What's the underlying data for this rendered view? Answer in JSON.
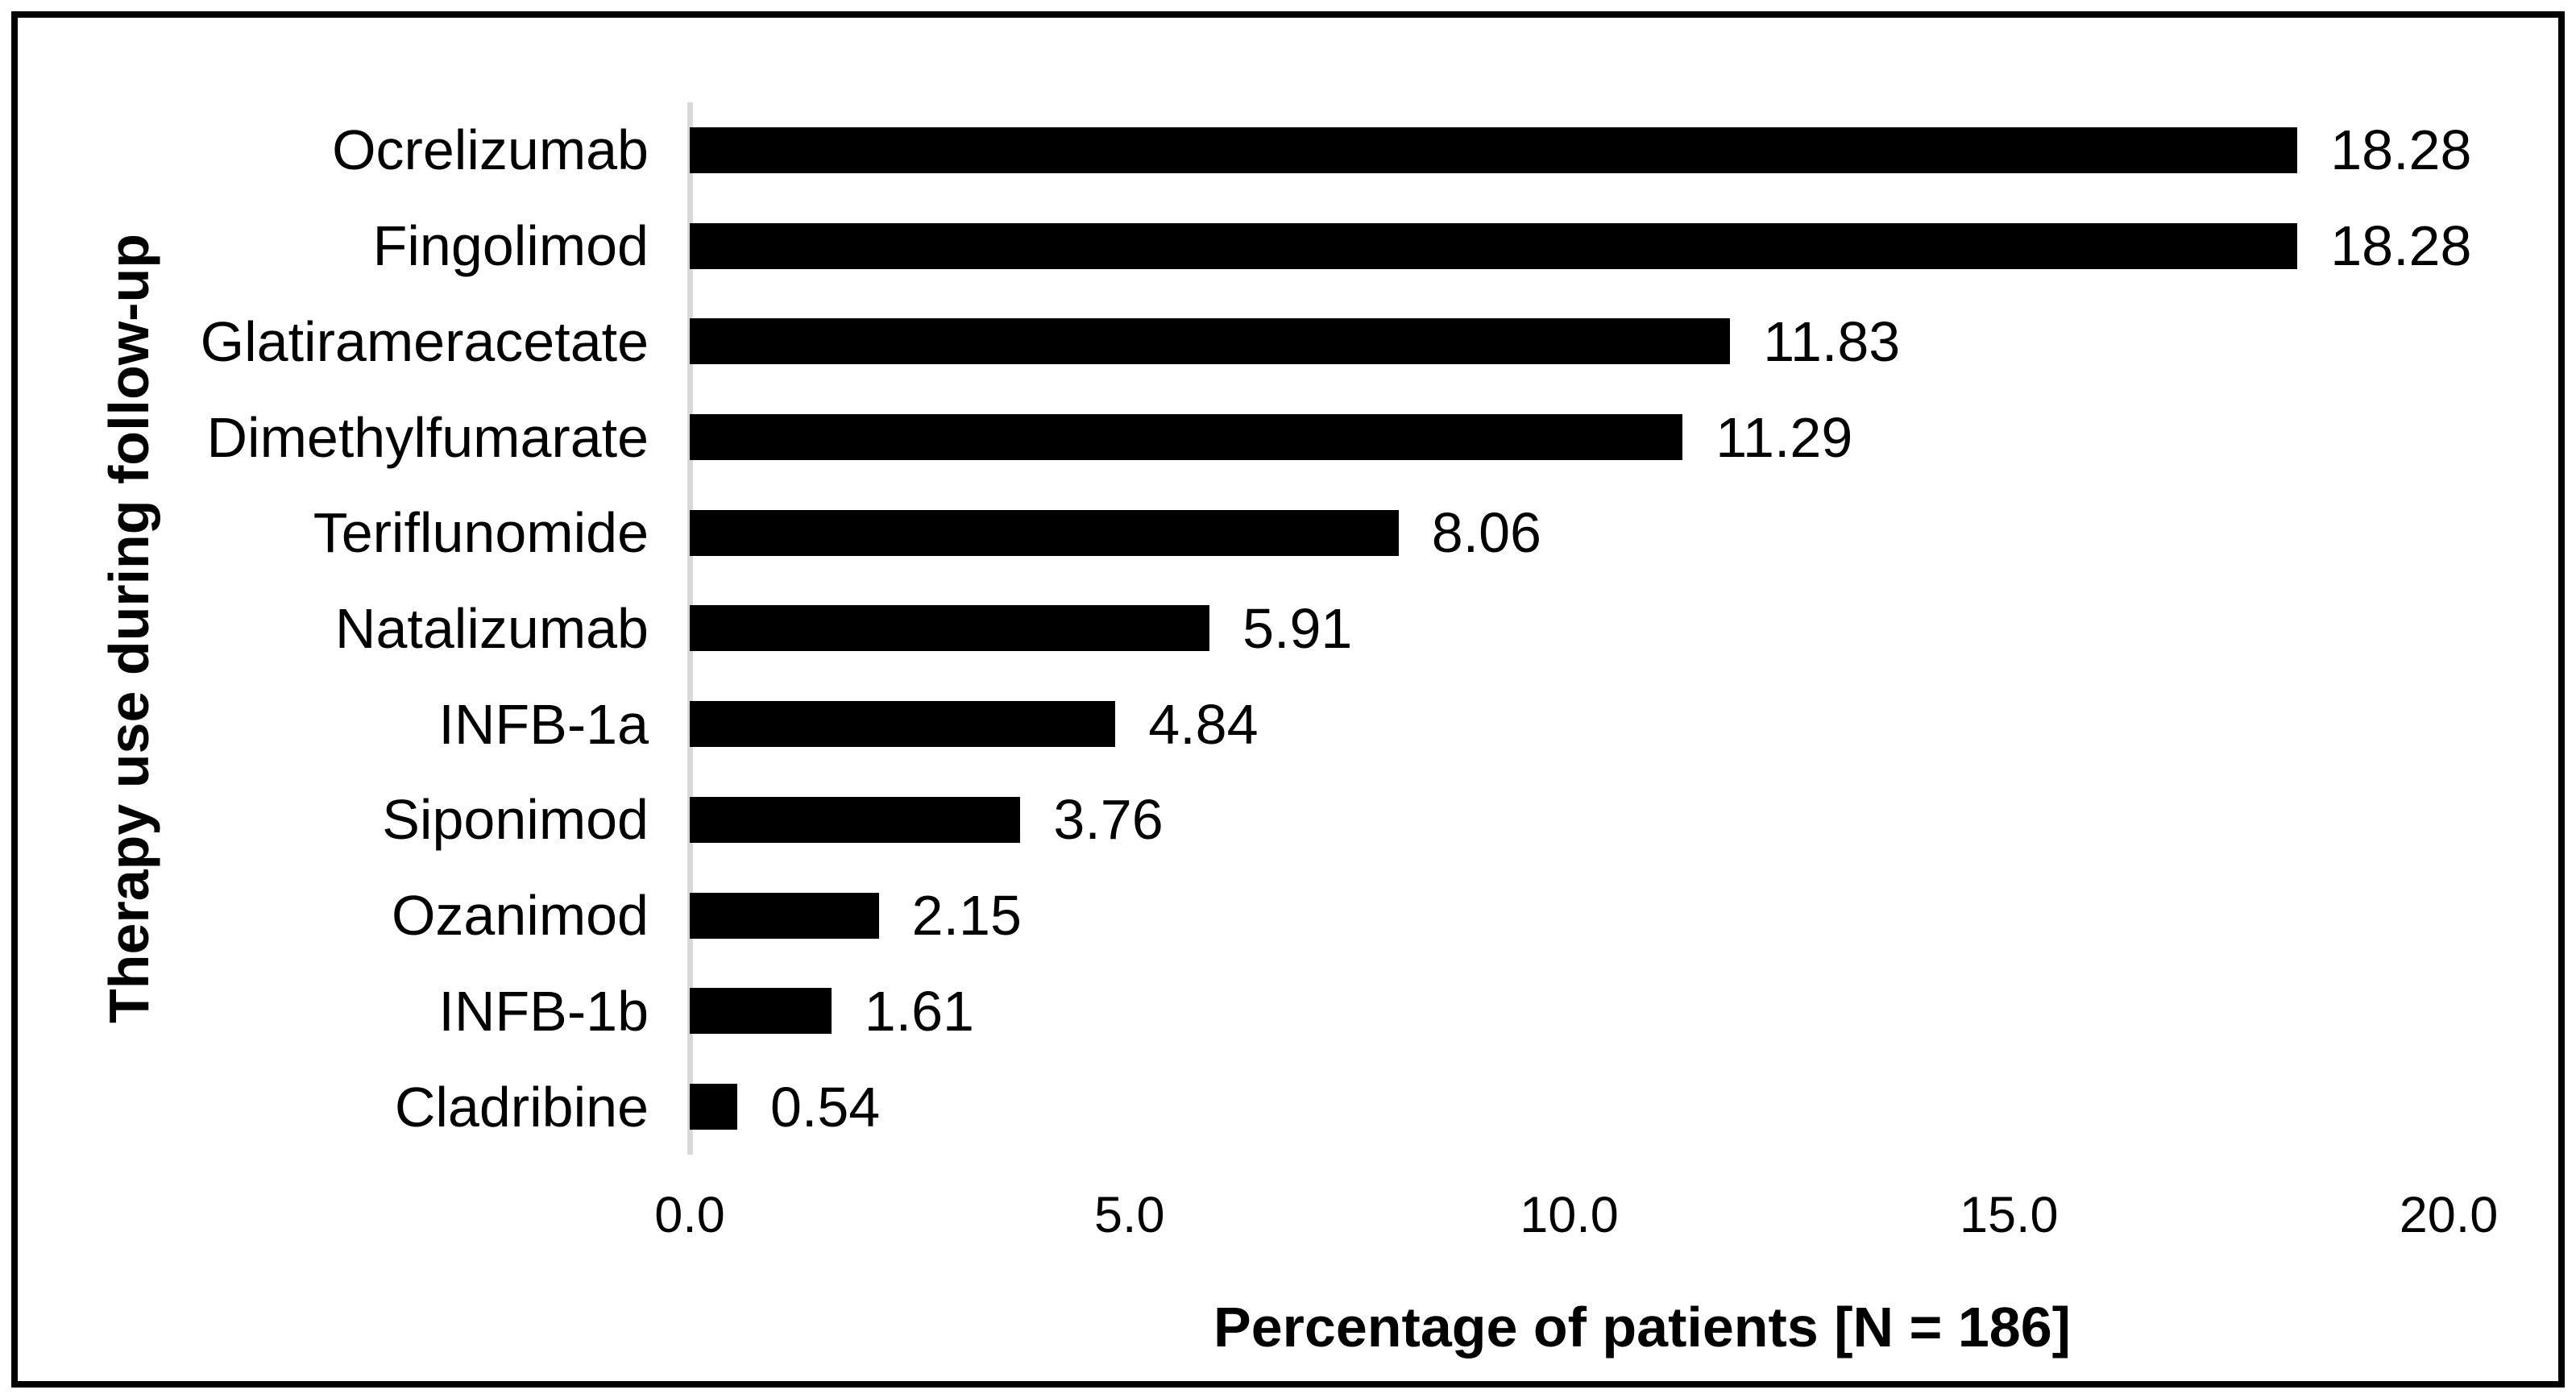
{
  "chart_data": {
    "type": "bar",
    "orientation": "horizontal",
    "title": "",
    "xlabel": "Percentage of patients [N = 186]",
    "ylabel": "Therapy use during follow-up",
    "categories": [
      "Ocrelizumab",
      "Fingolimod",
      "Glatirameracetate",
      "Dimethylfumarate",
      "Teriflunomide",
      "Natalizumab",
      "INFB-1a",
      "Siponimod",
      "Ozanimod",
      "INFB-1b",
      "Cladribine"
    ],
    "values": [
      18.28,
      18.28,
      11.83,
      11.29,
      8.06,
      5.91,
      4.84,
      3.76,
      2.15,
      1.61,
      0.54
    ],
    "value_labels": [
      "18.28",
      "18.28",
      "11.83",
      "11.29",
      "8.06",
      "5.91",
      "4.84",
      "3.76",
      "2.15",
      "1.61",
      "0.54"
    ],
    "x_ticks": [
      "0.0",
      "5.0",
      "10.0",
      "15.0",
      "20.0"
    ],
    "x_tick_values": [
      0,
      5,
      10,
      15,
      20
    ],
    "xlim": [
      0,
      20
    ],
    "grid": false,
    "legend_position": "none",
    "bar_color": "#000000",
    "axis_line_color": "#d9d9d9",
    "text_color": "#000000",
    "background_color": "#ffffff",
    "border_color": "#000000"
  }
}
